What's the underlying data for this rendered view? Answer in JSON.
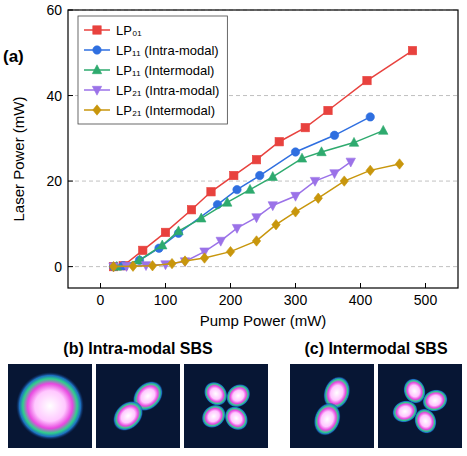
{
  "chart_data": {
    "type": "line",
    "panel_label": "(a)",
    "x_label": "Pump Power (mW)",
    "y_label": "Laser Power (mW)",
    "xlim": [
      -50,
      550
    ],
    "xticks": [
      0,
      100,
      200,
      300,
      400,
      500
    ],
    "ylim": [
      -5,
      60
    ],
    "yticks": [
      0,
      20,
      40,
      60
    ],
    "grid": true,
    "legend": "upper left",
    "series": [
      {
        "name": "LP₀₁",
        "color": "#e8423e",
        "marker": "square",
        "line_style": "solid",
        "x": [
          20,
          35,
          65,
          100,
          140,
          170,
          205,
          240,
          275,
          315,
          350,
          410,
          480
        ],
        "values": [
          0,
          0.2,
          3.8,
          8,
          13.3,
          17.5,
          21.3,
          25,
          29.2,
          32.5,
          36.5,
          43.5,
          50.5
        ]
      },
      {
        "name": "LP₁₁ (Intra-modal)",
        "color": "#2f6fe0",
        "marker": "circle",
        "line_style": "solid",
        "x": [
          20,
          35,
          60,
          90,
          120,
          180,
          210,
          245,
          300,
          360,
          415
        ],
        "values": [
          0,
          0.2,
          1.5,
          4.3,
          7.8,
          14.5,
          18,
          21.3,
          26.8,
          30.7,
          35
        ]
      },
      {
        "name": "LP₁₁ (Intermodal)",
        "color": "#2eaa6e",
        "marker": "triangle-up",
        "line_style": "solid",
        "x": [
          25,
          60,
          95,
          120,
          155,
          195,
          230,
          265,
          310,
          340,
          390,
          435
        ],
        "values": [
          0,
          1.5,
          5,
          8.3,
          11.3,
          15,
          18,
          21,
          25.3,
          26.8,
          29,
          31.8
        ]
      },
      {
        "name": "LP₂₁ (Intra-modal)",
        "color": "#9b72e8",
        "marker": "triangle-down",
        "line_style": "solid",
        "x": [
          20,
          40,
          70,
          100,
          130,
          160,
          185,
          210,
          240,
          265,
          300,
          330,
          360,
          385
        ],
        "values": [
          0,
          0.1,
          0.3,
          0.5,
          1.2,
          3.5,
          6,
          9,
          11.5,
          14.3,
          16.5,
          20,
          21.8,
          24.5
        ]
      },
      {
        "name": "LP₂₁ (Intermodal)",
        "color": "#c8960c",
        "marker": "diamond",
        "line_style": "solid",
        "x": [
          20,
          50,
          80,
          110,
          130,
          160,
          200,
          240,
          270,
          300,
          335,
          375,
          415,
          460
        ],
        "values": [
          0,
          0.1,
          0.2,
          0.7,
          1.3,
          2,
          3.5,
          6,
          9.8,
          12.8,
          16,
          20,
          22.5,
          24
        ]
      }
    ]
  },
  "panels": [
    {
      "title": "(b) Intra-modal SBS"
    },
    {
      "title": "(c) Intermodal SBS"
    }
  ]
}
